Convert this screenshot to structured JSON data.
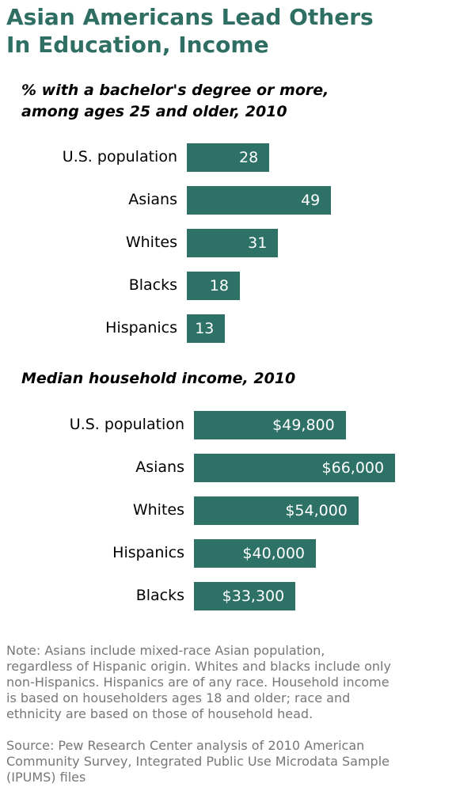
{
  "title_line1": "Asian Americans Lead Others",
  "title_line2": "In Education, Income",
  "colors": {
    "title": "#2e6e63",
    "bar": "#2e7267",
    "note": "#777777"
  },
  "chart_data": [
    {
      "type": "bar",
      "orientation": "horizontal",
      "title_line1": "% with a bachelor's degree or more,",
      "title_line2": "among ages 25 and older, 2010",
      "categories": [
        "U.S. population",
        "Asians",
        "Whites",
        "Blacks",
        "Hispanics"
      ],
      "values": [
        28,
        49,
        31,
        18,
        13
      ],
      "labels": [
        "28",
        "49",
        "31",
        "18",
        "13"
      ]
    },
    {
      "type": "bar",
      "orientation": "horizontal",
      "title": "Median household income, 2010",
      "categories": [
        "U.S. population",
        "Asians",
        "Whites",
        "Hispanics",
        "Blacks"
      ],
      "values": [
        49800,
        66000,
        54000,
        40000,
        33300
      ],
      "labels": [
        "$49,800",
        "$66,000",
        "$54,000",
        "$40,000",
        "$33,300"
      ]
    }
  ],
  "note_line1": "Note: Asians include mixed-race Asian population,",
  "note_line2": "regardless of Hispanic origin. Whites and blacks include only",
  "note_line3": "non-Hispanics. Hispanics are of any race. Household income",
  "note_line4": "is based on householders ages 18 and older; race and",
  "note_line5": "ethnicity are based on those of household head.",
  "source_line1": "Source: Pew Research Center analysis of 2010 American",
  "source_line2": "Community Survey, Integrated Public Use Microdata Sample",
  "source_line3": "(IPUMS) files"
}
